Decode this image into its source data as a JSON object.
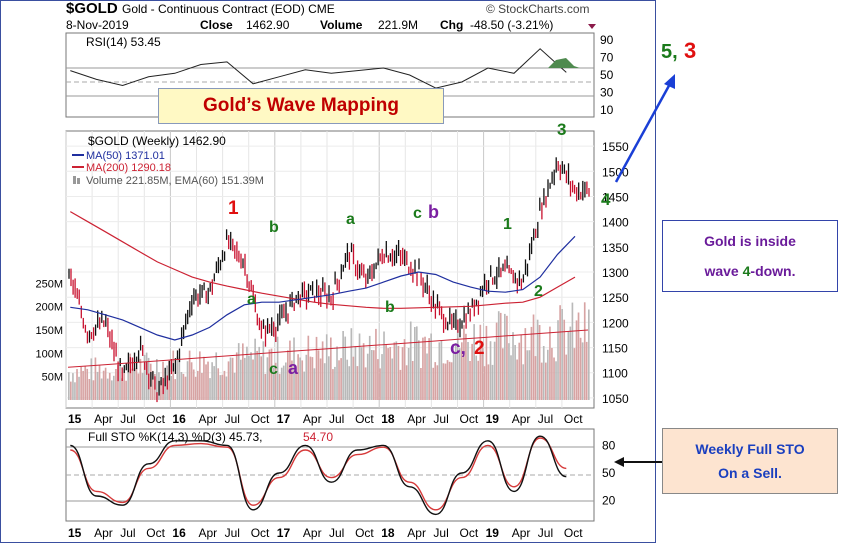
{
  "header": {
    "symbol": "$GOLD",
    "name": "Gold - Continuous Contract (EOD) CME",
    "date": "8-Nov-2019",
    "close_label": "Close",
    "close": "1462.90",
    "volume_label": "Volume",
    "volume": "221.9M",
    "chg_label": "Chg",
    "chg": "-48.50 (-3.21%)",
    "watermark": "© StockCharts.com"
  },
  "rsi_panel": {
    "label": "RSI(14) 53.45",
    "ticks": [
      "90",
      "70",
      "50",
      "30",
      "10"
    ]
  },
  "main_panel": {
    "legend_title": "$GOLD (Weekly) 1462.90",
    "legend_ma50": "MA(50) 1371.01",
    "legend_ma200": "MA(200) 1290.18",
    "legend_volume": "Volume 221.85M, EMA(60) 151.39M",
    "price_ticks": [
      "1550",
      "1500",
      "1450",
      "1400",
      "1350",
      "1300",
      "1250",
      "1200",
      "1150",
      "1100",
      "1050"
    ],
    "volume_ticks": [
      "250M",
      "200M",
      "150M",
      "100M",
      "50M"
    ]
  },
  "sto_panel": {
    "label_main": "Full STO %K(14,3) %D(3) 45.73,",
    "label_d": "54.70",
    "ticks": [
      "80",
      "50",
      "20"
    ]
  },
  "x_axis_labels": [
    "15",
    "Apr",
    "Jul",
    "Oct",
    "16",
    "Apr",
    "Jul",
    "Oct",
    "17",
    "Apr",
    "Jul",
    "Oct",
    "18",
    "Apr",
    "Jul",
    "Oct",
    "19",
    "Apr",
    "Jul",
    "Oct"
  ],
  "annotations": {
    "title_box": "Gold’s Wave Mapping",
    "target_5": "5,",
    "target_3": "3",
    "wave_1": "1",
    "wave_b1": "b",
    "wave_a1": "a",
    "wave_c1": "c",
    "wave_a2": "a",
    "wave_a3": "a",
    "wave_b2": "b",
    "wave_c2": "c",
    "wave_b3": "b",
    "wave_c3": "c,",
    "wave_2": "2",
    "wave_1b": "1",
    "wave_2b": "2",
    "wave_3": "3",
    "wave_4": "4",
    "note1_line1": "Gold is inside",
    "note1_pre": "wave ",
    "note1_num": "4",
    "note1_post": "-down.",
    "note2_line1": "Weekly Full STO",
    "note2_line2": "On a Sell."
  },
  "colors": {
    "ma50": "#1f2f9f",
    "ma200": "#cc2233",
    "annotation_green": "#1b7a1b",
    "annotation_red": "#e01010",
    "annotation_purple": "#7b1fa2",
    "arrow_blue": "#1a3fd6"
  },
  "chart_data": [
    {
      "type": "line",
      "title": "RSI(14) 53.45",
      "ylim": [
        10,
        90
      ],
      "x": [
        "2015-01",
        "2015-04",
        "2015-07",
        "2015-10",
        "2016-01",
        "2016-04",
        "2016-07",
        "2016-10",
        "2017-01",
        "2017-04",
        "2017-07",
        "2017-10",
        "2018-01",
        "2018-04",
        "2018-07",
        "2018-10",
        "2019-01",
        "2019-04",
        "2019-07",
        "2019-10"
      ],
      "series": [
        {
          "name": "RSI(14)",
          "values": [
            55,
            45,
            38,
            48,
            52,
            62,
            65,
            40,
            48,
            56,
            52,
            55,
            58,
            50,
            35,
            42,
            58,
            52,
            80,
            53
          ]
        }
      ]
    },
    {
      "type": "line",
      "title": "$GOLD (Weekly) 1462.90",
      "ylim": [
        1030,
        1580
      ],
      "x": [
        "2015-01",
        "2015-03",
        "2015-05",
        "2015-07",
        "2015-09",
        "2015-11",
        "2016-01",
        "2016-03",
        "2016-05",
        "2016-07",
        "2016-09",
        "2016-11",
        "2017-01",
        "2017-03",
        "2017-05",
        "2017-07",
        "2017-09",
        "2017-11",
        "2018-01",
        "2018-03",
        "2018-05",
        "2018-07",
        "2018-09",
        "2018-11",
        "2019-01",
        "2019-03",
        "2019-05",
        "2019-07",
        "2019-09",
        "2019-11"
      ],
      "series": [
        {
          "name": "$GOLD",
          "values": [
            1290,
            1180,
            1200,
            1090,
            1150,
            1060,
            1110,
            1250,
            1260,
            1360,
            1320,
            1180,
            1200,
            1250,
            1260,
            1250,
            1340,
            1280,
            1340,
            1330,
            1300,
            1230,
            1190,
            1220,
            1290,
            1300,
            1280,
            1420,
            1520,
            1462
          ]
        },
        {
          "name": "MA(50)",
          "values": [
            1230,
            1225,
            1215,
            1205,
            1190,
            1175,
            1165,
            1175,
            1190,
            1215,
            1235,
            1240,
            1240,
            1245,
            1250,
            1255,
            1262,
            1268,
            1280,
            1292,
            1300,
            1295,
            1280,
            1270,
            1262,
            1260,
            1265,
            1290,
            1335,
            1371
          ]
        },
        {
          "name": "MA(200)",
          "values": [
            1420,
            1400,
            1380,
            1360,
            1340,
            1320,
            1305,
            1290,
            1280,
            1272,
            1265,
            1258,
            1252,
            1246,
            1240,
            1236,
            1233,
            1230,
            1228,
            1228,
            1229,
            1230,
            1231,
            1232,
            1235,
            1238,
            1240,
            1250,
            1270,
            1290
          ]
        }
      ]
    },
    {
      "type": "line",
      "title": "Full STO %K(14,3) %D(3) 45.73, 54.70",
      "ylim": [
        0,
        100
      ],
      "x": [
        "2015-01",
        "2015-04",
        "2015-07",
        "2015-10",
        "2016-01",
        "2016-04",
        "2016-07",
        "2016-10",
        "2017-01",
        "2017-04",
        "2017-07",
        "2017-10",
        "2018-01",
        "2018-04",
        "2018-07",
        "2018-10",
        "2019-01",
        "2019-04",
        "2019-07",
        "2019-10"
      ],
      "series": [
        {
          "name": "%K",
          "values": [
            80,
            25,
            15,
            60,
            85,
            85,
            80,
            10,
            50,
            80,
            40,
            75,
            80,
            35,
            5,
            50,
            85,
            30,
            90,
            46
          ]
        },
        {
          "name": "%D",
          "values": [
            75,
            30,
            18,
            55,
            80,
            82,
            78,
            15,
            45,
            75,
            45,
            70,
            78,
            40,
            10,
            45,
            80,
            35,
            88,
            55
          ]
        }
      ]
    }
  ]
}
